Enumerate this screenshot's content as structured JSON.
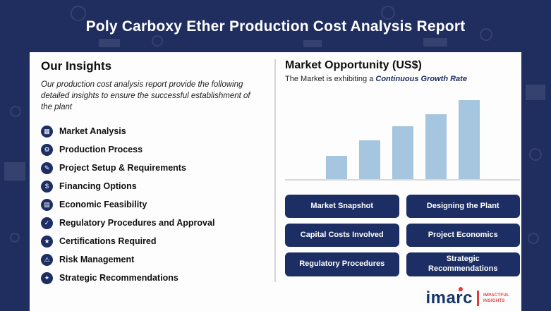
{
  "header": {
    "title": "Poly Carboxy Ether Production Cost Analysis Report"
  },
  "insights": {
    "heading": "Our Insights",
    "description": "Our production cost analysis report provide the following detailed insights to ensure the successful establishment of the plant",
    "items": [
      {
        "label": "Market Analysis",
        "icon": "market-analysis-icon",
        "glyph": "▦"
      },
      {
        "label": "Production Process",
        "icon": "gear-icon",
        "glyph": "⚙"
      },
      {
        "label": "Project Setup & Requirements",
        "icon": "clipboard-icon",
        "glyph": "✎"
      },
      {
        "label": "Financing Options",
        "icon": "dollar-icon",
        "glyph": "$"
      },
      {
        "label": "Economic Feasibility",
        "icon": "calculator-icon",
        "glyph": "▤"
      },
      {
        "label": "Regulatory Procedures and Approval",
        "icon": "approval-check-icon",
        "glyph": "✓"
      },
      {
        "label": "Certifications Required",
        "icon": "certificate-star-icon",
        "glyph": "★"
      },
      {
        "label": "Risk Management",
        "icon": "risk-warning-icon",
        "glyph": "⚠"
      },
      {
        "label": "Strategic Recommendations",
        "icon": "strategy-spark-icon",
        "glyph": "✦"
      }
    ]
  },
  "market": {
    "heading": "Market Opportunity (US$)",
    "subtitle_prefix": "The Market is exhibiting a ",
    "subtitle_highlight": "Continuous Growth Rate"
  },
  "chart_data": {
    "type": "bar",
    "title": "Market Opportunity (US$)",
    "values": [
      33,
      55,
      75,
      92,
      112
    ],
    "note": "five bars of steadily increasing height; no axis, tick or value labels shown",
    "bar_color": "#a6c5de",
    "baseline_color": "#d9d9d9",
    "grid": false,
    "legend": false
  },
  "buttons": [
    {
      "label": "Market Snapshot"
    },
    {
      "label": "Designing the Plant"
    },
    {
      "label": "Capital Costs Involved"
    },
    {
      "label": "Project Economics"
    },
    {
      "label": "Regulatory Procedures"
    },
    {
      "label": "Strategic Recommendations"
    }
  ],
  "logo": {
    "name": "imarc",
    "tagline": "IMPACTFUL INSIGHTS"
  },
  "colors": {
    "navy": "#1c2e63",
    "background_navy": "#1f2d5f",
    "bar_blue": "#a6c5de",
    "accent_red": "#e23a3a",
    "panel_white": "#fdfdfd"
  }
}
